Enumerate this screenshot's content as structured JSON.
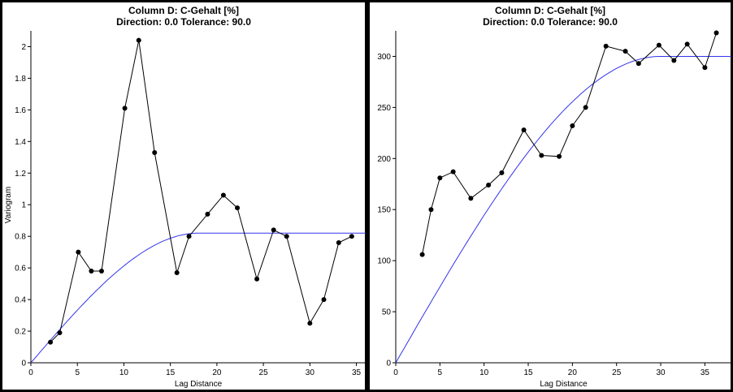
{
  "chart_data": [
    {
      "type": "line",
      "title_line1": "Column D:  C-Gehalt [%]",
      "title_line2": "Direction: 0.0   Tolerance: 90.0",
      "xlabel": "Lag Distance",
      "ylabel": "Variogram",
      "xlim": [
        0,
        36
      ],
      "ylim": [
        0,
        2.1
      ],
      "x_ticks": [
        0,
        5,
        10,
        15,
        20,
        25,
        30,
        35
      ],
      "y_ticks": [
        0,
        0.2,
        0.4,
        0.6,
        0.8,
        1,
        1.2,
        1.4,
        1.6,
        1.8,
        2
      ],
      "series": [
        {
          "x": [
            2.1,
            3.1,
            5.1,
            6.5,
            7.6,
            10.1,
            11.6,
            13.3,
            15.7,
            17.0,
            19.0,
            20.7,
            22.2,
            24.3,
            26.1,
            27.5,
            30.0,
            31.5,
            33.1,
            34.5
          ],
          "y": [
            0.13,
            0.19,
            0.7,
            0.58,
            0.58,
            1.61,
            2.04,
            1.33,
            0.57,
            0.8,
            0.94,
            1.06,
            0.98,
            0.53,
            0.84,
            0.8,
            0.25,
            0.4,
            0.76,
            0.8
          ],
          "color": "#000000"
        },
        {
          "model": "spherical",
          "range": 18,
          "sill": 0.82,
          "nugget": 0,
          "color": "#3333ee"
        }
      ]
    },
    {
      "type": "line",
      "title_line1": "Column D:  C-Gehalt [%]",
      "title_line2": "Direction: 0.0   Tolerance: 90.0",
      "xlabel": "Lag Distance",
      "ylabel": "",
      "xlim": [
        0,
        38
      ],
      "ylim": [
        0,
        325
      ],
      "x_ticks": [
        0,
        5,
        10,
        15,
        20,
        25,
        30,
        35
      ],
      "y_ticks": [
        0,
        50,
        100,
        150,
        200,
        250,
        300
      ],
      "series": [
        {
          "x": [
            3.0,
            4.0,
            5.0,
            6.5,
            8.5,
            10.5,
            12.0,
            14.5,
            16.5,
            18.5,
            20.0,
            21.5,
            23.8,
            26.0,
            27.5,
            29.8,
            31.5,
            33.0,
            35.0,
            36.3
          ],
          "y": [
            106,
            150,
            181,
            187,
            161,
            174,
            186,
            228,
            203,
            202,
            232,
            250,
            310,
            305,
            293,
            311,
            296,
            312,
            289,
            323
          ],
          "color": "#000000"
        },
        {
          "model": "spherical",
          "range": 30,
          "sill": 300,
          "nugget": 0,
          "color": "#3333ee"
        }
      ]
    }
  ]
}
